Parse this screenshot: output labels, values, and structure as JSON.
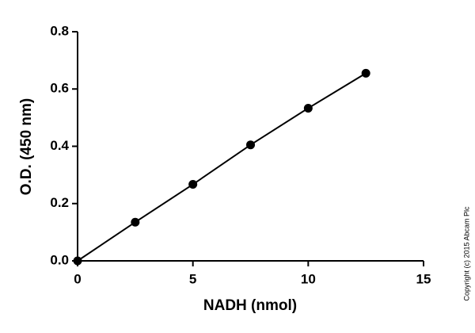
{
  "chart_data": {
    "type": "scatter",
    "x_label": "NADH (nmol)",
    "y_label": "O.D. (450 nm)",
    "annotation": "Copyright (c) 2015 Abcam Plc",
    "x": [
      0,
      2.5,
      5,
      7.5,
      10,
      12.5
    ],
    "values": [
      0,
      0.135,
      0.267,
      0.405,
      0.533,
      0.655
    ],
    "color": "#000000",
    "line": true,
    "xlim": [
      0,
      15
    ],
    "xticks": [
      0,
      5,
      10,
      15
    ],
    "ylim": [
      0,
      0.8
    ],
    "yticks": [
      {
        "value": 0,
        "label": "0.0"
      },
      0.2,
      0.4,
      0.6,
      0.8
    ],
    "grid": false
  }
}
